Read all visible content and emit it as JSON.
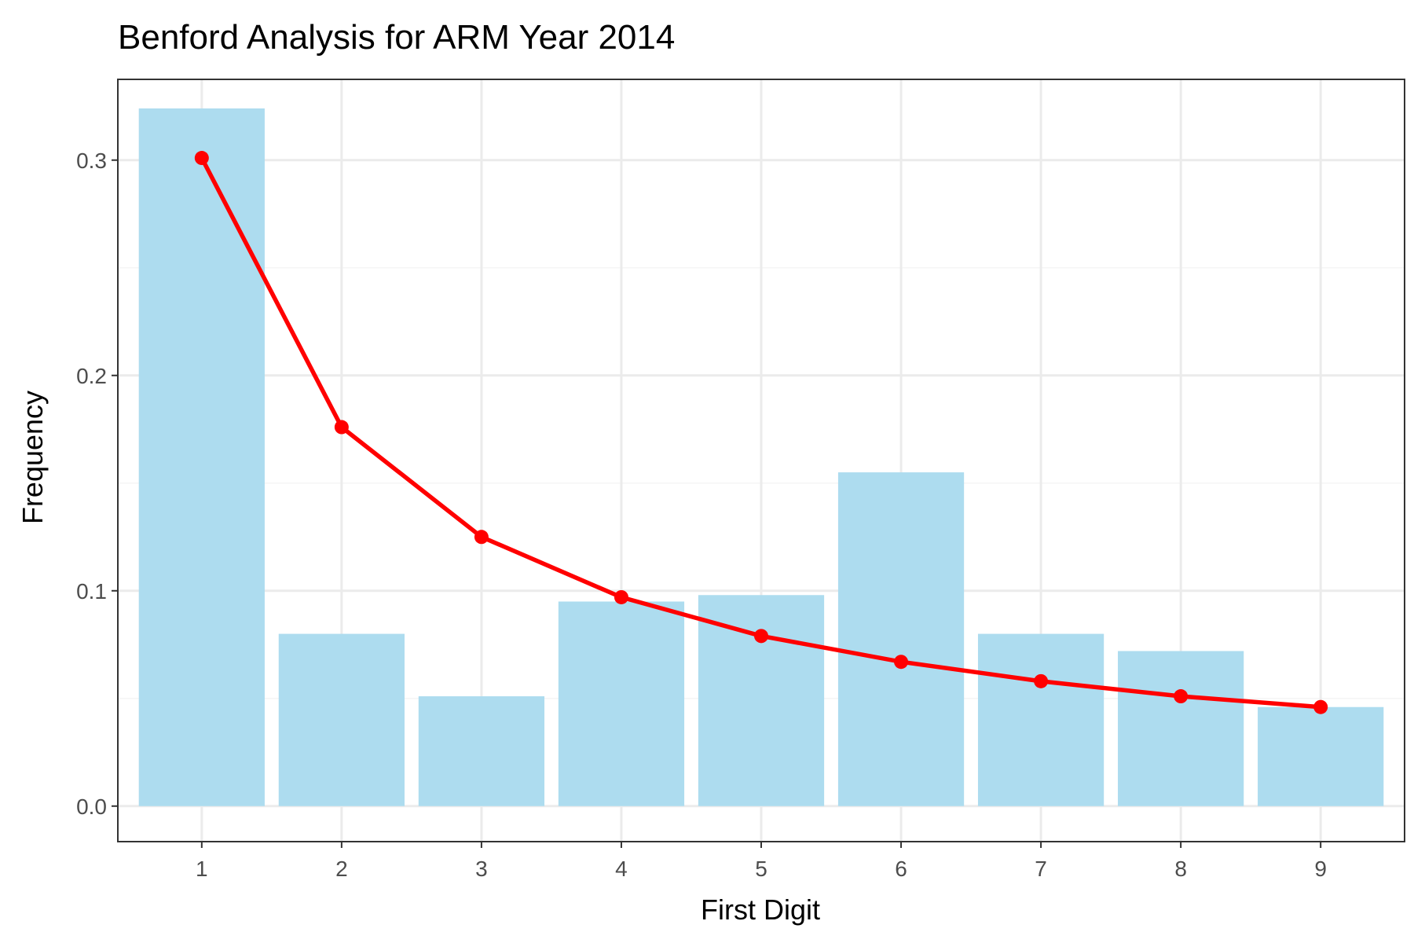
{
  "chart_data": {
    "type": "bar",
    "title": "Benford Analysis for ARM Year 2014",
    "xlabel": "First Digit",
    "ylabel": "Frequency",
    "categories": [
      "1",
      "2",
      "3",
      "4",
      "5",
      "6",
      "7",
      "8",
      "9"
    ],
    "series": [
      {
        "type": "bar",
        "values": [
          0.324,
          0.08,
          0.051,
          0.095,
          0.098,
          0.155,
          0.08,
          0.072,
          0.046
        ],
        "color": "#ADDCEF"
      },
      {
        "type": "line",
        "values": [
          0.301,
          0.176,
          0.125,
          0.097,
          0.079,
          0.067,
          0.058,
          0.051,
          0.046
        ],
        "color": "#FF0000"
      }
    ],
    "ylim": [
      -0.0165,
      0.3375
    ],
    "yticks": [
      0.0,
      0.1,
      0.2,
      0.3
    ],
    "ytick_labels": [
      "0.0",
      "0.1",
      "0.2",
      "0.3"
    ],
    "grid": true,
    "colors": {
      "panel_border": "#333333",
      "grid_major": "#ebebeb",
      "grid_minor": "#f5f5f5",
      "tick_text": "#4d4d4d"
    }
  }
}
